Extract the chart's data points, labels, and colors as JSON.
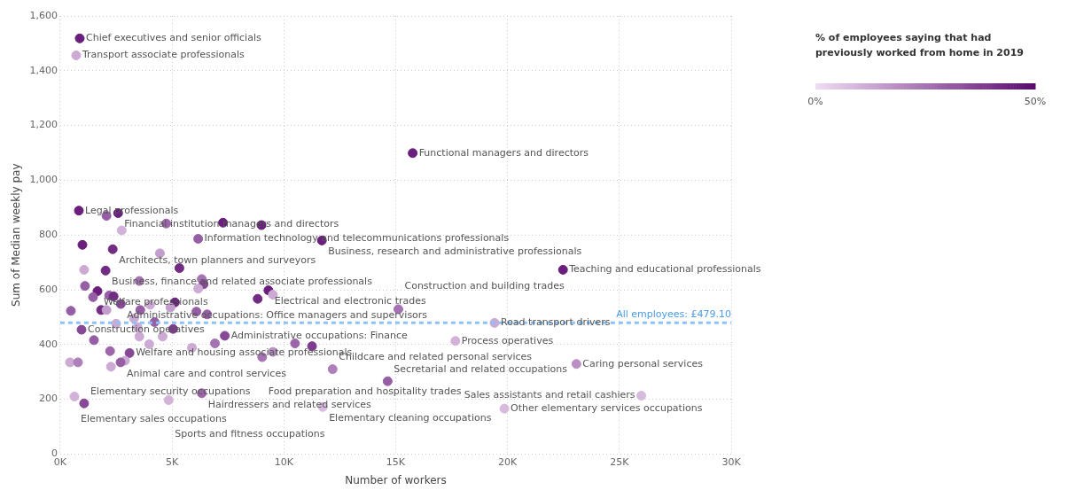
{
  "chart_data": {
    "type": "scatter",
    "xlabel": "Number of workers",
    "ylabel": "Sum of Median weekly pay",
    "clabel": "% of employees saying that had previously worked from home in 2019",
    "xlim": [
      0,
      30000
    ],
    "xticks": [
      {
        "value": 0,
        "label": "0K"
      },
      {
        "value": 5000,
        "label": "5K"
      },
      {
        "value": 10000,
        "label": "10K"
      },
      {
        "value": 15000,
        "label": "15K"
      },
      {
        "value": 20000,
        "label": "20K"
      },
      {
        "value": 25000,
        "label": "25K"
      },
      {
        "value": 30000,
        "label": "30K"
      }
    ],
    "ylim": [
      0,
      1600
    ],
    "yticks": [
      0,
      200,
      400,
      600,
      800,
      {
        "value": 1000,
        "label": "1,000"
      },
      {
        "value": 1200,
        "label": "1,200"
      },
      {
        "value": 1400,
        "label": "1,400"
      },
      {
        "value": 1600,
        "label": "1,600"
      }
    ],
    "clim": [
      0,
      50
    ],
    "cticks": [
      {
        "value": 0,
        "label": "0%"
      },
      {
        "value": 50,
        "label": "50%"
      }
    ],
    "grid": true,
    "legend": false,
    "marker": "circle",
    "x": [
      875,
      716,
      15760,
      836,
      2590,
      2070,
      4740,
      7280,
      9000,
      2750,
      6170,
      11700,
      995,
      2350,
      4460,
      5330,
      1070,
      2030,
      3540,
      6330,
      6410,
      1110,
      6170,
      1670,
      9310,
      9510,
      1470,
      2190,
      2390,
      8830,
      5130,
      2710,
      4930,
      4020,
      478,
      1830,
      2070,
      3580,
      6090,
      6570,
      15120,
      2500,
      3300,
      4220,
      3460,
      5050,
      955,
      19420,
      3540,
      4580,
      7360,
      1510,
      17670,
      3980,
      6920,
      10500,
      11260,
      5890,
      2230,
      3100,
      9510,
      9030,
      2900,
      438,
      796,
      2700,
      23080,
      2270,
      12180,
      14640,
      6330,
      25980,
      637,
      4850,
      1070,
      11740,
      19860,
      22480
    ],
    "values": [
      1518,
      1456,
      1099,
      889,
      880,
      870,
      842,
      845,
      836,
      817,
      786,
      780,
      764,
      748,
      733,
      679,
      673,
      670,
      632,
      639,
      620,
      614,
      604,
      595,
      598,
      582,
      573,
      579,
      576,
      567,
      554,
      548,
      535,
      545,
      523,
      526,
      526,
      526,
      520,
      510,
      529,
      476,
      495,
      482,
      463,
      457,
      454,
      479,
      429,
      429,
      432,
      416,
      413,
      401,
      404,
      404,
      394,
      388,
      376,
      369,
      373,
      354,
      341,
      335,
      335,
      335,
      329,
      319,
      310,
      266,
      222,
      213,
      210,
      197,
      185,
      172,
      166,
      673
    ],
    "cvalues": [
      45,
      12,
      45,
      45,
      45,
      30,
      28,
      45,
      45,
      10,
      30,
      45,
      45,
      42,
      15,
      42,
      12,
      42,
      25,
      25,
      35,
      30,
      12,
      45,
      45,
      12,
      30,
      30,
      42,
      42,
      45,
      35,
      15,
      12,
      30,
      42,
      15,
      30,
      30,
      30,
      25,
      12,
      12,
      30,
      12,
      38,
      35,
      12,
      12,
      12,
      35,
      30,
      10,
      12,
      25,
      28,
      38,
      12,
      28,
      35,
      18,
      25,
      12,
      12,
      22,
      30,
      18,
      12,
      22,
      30,
      28,
      8,
      10,
      10,
      35,
      8,
      8,
      45
    ],
    "ref_lines": [
      {
        "axis": "y",
        "value": 479.1,
        "label": "All employees: £479.10",
        "color": "#8cc2f7",
        "line_style": "dashed"
      }
    ],
    "annotations": [
      {
        "text": "Chief executives and senior officials",
        "x": 875,
        "y": 1518
      },
      {
        "text": "Transport associate professionals",
        "x": 716,
        "y": 1456
      },
      {
        "text": "Functional managers and directors",
        "x": 15760,
        "y": 1099
      },
      {
        "text": "Legal professionals",
        "x": 836,
        "y": 889
      },
      {
        "text": "Financial institution managers and directors",
        "x": 2590,
        "y": 880
      },
      {
        "text": "Information technology and telecommunications professionals",
        "x": 6170,
        "y": 786
      },
      {
        "text": "Business, research and administrative professionals",
        "x": 11700,
        "y": 780
      },
      {
        "text": "Architects, town planners and surveyors",
        "x": 2350,
        "y": 748
      },
      {
        "text": "Business, finance and related associate professionals",
        "x": 2030,
        "y": 670
      },
      {
        "text": "Welfare professionals",
        "x": 1670,
        "y": 595
      },
      {
        "text": "Electrical and electronic trades",
        "x": 9310,
        "y": 598
      },
      {
        "text": "Administrative occupations: Office managers and supervisors",
        "x": 2710,
        "y": 548
      },
      {
        "text": "Teaching and educational professionals",
        "x": 22480,
        "y": 673
      },
      {
        "text": "Road transport drivers",
        "x": 19420,
        "y": 479
      },
      {
        "text": "Construction and building trades",
        "x": 15120,
        "y": 529
      },
      {
        "text": "Construction operatives",
        "x": 955,
        "y": 454
      },
      {
        "text": "Administrative occupations: Finance",
        "x": 7360,
        "y": 432
      },
      {
        "text": "Process operatives",
        "x": 17670,
        "y": 413
      },
      {
        "text": "Welfare and housing associate professionals",
        "x": 3100,
        "y": 369
      },
      {
        "text": "Animal care and control services",
        "x": 2700,
        "y": 335
      },
      {
        "text": "Food preparation and hospitality trades",
        "x": 9030,
        "y": 354
      },
      {
        "text": "Caring personal services",
        "x": 23080,
        "y": 329
      },
      {
        "text": "Secretarial and related occupations",
        "x": 14640,
        "y": 266
      },
      {
        "text": "Hairdressers and related services",
        "x": 6330,
        "y": 222
      },
      {
        "text": "Childcare and related personal services",
        "x": 12180,
        "y": 310
      },
      {
        "text": "Sales assistants and retail cashiers",
        "x": 25980,
        "y": 213
      },
      {
        "text": "Elementary sales occupations",
        "x": 637,
        "y": 210
      },
      {
        "text": "Elementary security occupations",
        "x": 1070,
        "y": 185
      },
      {
        "text": "Sports and fitness occupations",
        "x": 4850,
        "y": 197
      },
      {
        "text": "Elementary cleaning occupations",
        "x": 11740,
        "y": 172
      },
      {
        "text": "Other elementary services occupations",
        "x": 19860,
        "y": 166
      }
    ]
  }
}
